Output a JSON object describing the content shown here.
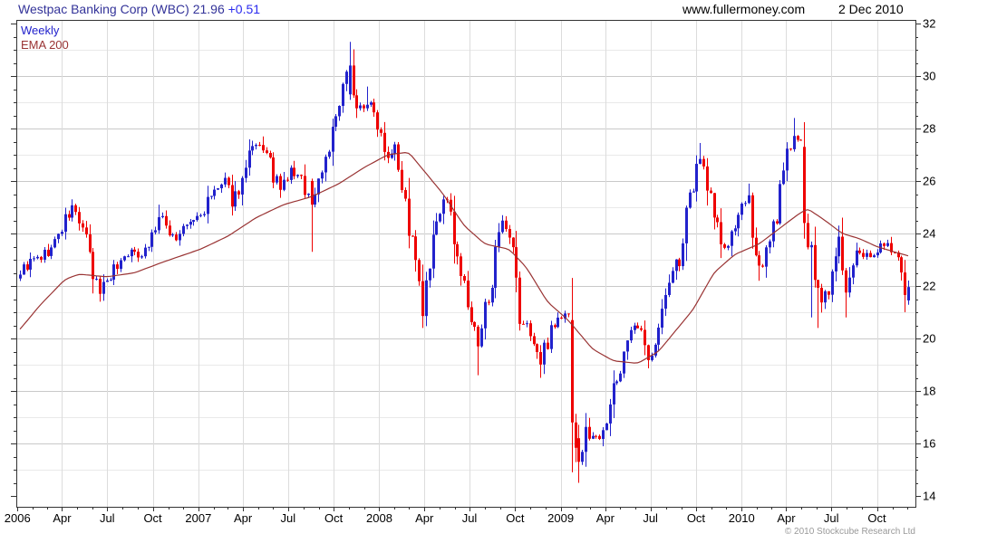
{
  "header": {
    "title": "Westpac Banking Corp (WBC) 21.96",
    "change": "+0.51",
    "site": "www.fullermoney.com",
    "date": "2 Dec 2010"
  },
  "legend": {
    "series": "Weekly",
    "ema": "EMA 200"
  },
  "footer": {
    "copyright": "© 2010 Stockcube Research Ltd"
  },
  "chart_data": {
    "type": "candlestick",
    "title": "Westpac Banking Corp (WBC) weekly candlestick chart with 200 EMA",
    "instrument": "Westpac Banking Corp",
    "ticker": "WBC",
    "last_price": 21.96,
    "change": 0.51,
    "timeframe": "Weekly",
    "overlay": "EMA 200",
    "start_week": "2006-01-06",
    "end_week": "2010-12-03",
    "y_axis": {
      "min": 14,
      "max": 32,
      "label_step": 2,
      "grid_step": 1,
      "tick_step": 0.5,
      "tick_labels": [
        "14",
        "16",
        "18",
        "20",
        "22",
        "24",
        "26",
        "28",
        "30",
        "32"
      ]
    },
    "x_axis": {
      "labels": [
        {
          "d": "2006-01-01",
          "t": "2006"
        },
        {
          "d": "2006-04-01",
          "t": "Apr"
        },
        {
          "d": "2006-07-01",
          "t": "Jul"
        },
        {
          "d": "2006-10-01",
          "t": "Oct"
        },
        {
          "d": "2007-01-01",
          "t": "2007"
        },
        {
          "d": "2007-04-01",
          "t": "Apr"
        },
        {
          "d": "2007-07-01",
          "t": "Jul"
        },
        {
          "d": "2007-10-01",
          "t": "Oct"
        },
        {
          "d": "2008-01-01",
          "t": "2008"
        },
        {
          "d": "2008-04-01",
          "t": "Apr"
        },
        {
          "d": "2008-07-01",
          "t": "Jul"
        },
        {
          "d": "2008-10-01",
          "t": "Oct"
        },
        {
          "d": "2009-01-01",
          "t": "2009"
        },
        {
          "d": "2009-04-01",
          "t": "Apr"
        },
        {
          "d": "2009-07-01",
          "t": "Jul"
        },
        {
          "d": "2009-10-01",
          "t": "Oct"
        },
        {
          "d": "2010-01-01",
          "t": "2010"
        },
        {
          "d": "2010-04-01",
          "t": "Apr"
        },
        {
          "d": "2010-07-01",
          "t": "Jul"
        },
        {
          "d": "2010-10-01",
          "t": "Oct"
        }
      ]
    },
    "colors": {
      "up": "#2222cc",
      "down": "#ee0000",
      "ema": "#993333",
      "grid_major": "#c9c9c9",
      "grid_minor": "#e9e9e9",
      "grid_vertical": "#dcdcdc",
      "axis": "#333333",
      "text": "#000000",
      "title_blue": "#333399",
      "change_blue": "#2b2bee",
      "copyright_gray": "#999999"
    },
    "price_anchors": [
      {
        "d": "2006-01-06",
        "c": 22.55
      },
      {
        "d": "2006-01-27",
        "c": 22.9
      },
      {
        "d": "2006-02-17",
        "c": 23.1
      },
      {
        "d": "2006-03-10",
        "c": 23.4
      },
      {
        "d": "2006-03-31",
        "c": 24.2
      },
      {
        "d": "2006-04-21",
        "c": 25.0
      },
      {
        "d": "2006-05-12",
        "c": 24.2
      },
      {
        "d": "2006-06-02",
        "c": 22.3
      },
      {
        "d": "2006-06-16",
        "c": 21.8
      },
      {
        "d": "2006-06-30",
        "c": 22.3
      },
      {
        "d": "2006-07-21",
        "c": 22.8
      },
      {
        "d": "2006-08-11",
        "c": 23.3
      },
      {
        "d": "2006-09-01",
        "c": 23.2
      },
      {
        "d": "2006-09-22",
        "c": 23.6
      },
      {
        "d": "2006-10-13",
        "c": 24.6
      },
      {
        "d": "2006-11-03",
        "c": 24.1
      },
      {
        "d": "2006-11-17",
        "c": 23.8
      },
      {
        "d": "2006-12-08",
        "c": 24.3
      },
      {
        "d": "2007-01-05",
        "c": 24.7
      },
      {
        "d": "2007-02-02",
        "c": 25.6
      },
      {
        "d": "2007-02-23",
        "c": 25.9
      },
      {
        "d": "2007-03-09",
        "c": 25.2
      },
      {
        "d": "2007-03-30",
        "c": 26.0
      },
      {
        "d": "2007-04-20",
        "c": 27.2
      },
      {
        "d": "2007-05-11",
        "c": 27.3
      },
      {
        "d": "2007-06-01",
        "c": 26.2
      },
      {
        "d": "2007-06-15",
        "c": 25.6
      },
      {
        "d": "2007-07-06",
        "c": 26.4
      },
      {
        "d": "2007-07-27",
        "c": 26.0
      },
      {
        "d": "2007-08-17",
        "c": 25.2
      },
      {
        "d": "2007-09-07",
        "c": 26.5
      },
      {
        "d": "2007-09-28",
        "c": 27.8
      },
      {
        "d": "2007-10-19",
        "c": 29.3
      },
      {
        "d": "2007-11-02",
        "c": 30.4
      },
      {
        "d": "2007-11-16",
        "c": 28.7
      },
      {
        "d": "2007-12-07",
        "c": 29.0
      },
      {
        "d": "2007-12-28",
        "c": 28.3
      },
      {
        "d": "2008-01-18",
        "c": 27.0
      },
      {
        "d": "2008-02-01",
        "c": 27.6
      },
      {
        "d": "2008-02-22",
        "c": 25.0
      },
      {
        "d": "2008-03-14",
        "c": 22.8
      },
      {
        "d": "2008-03-28",
        "c": 20.9
      },
      {
        "d": "2008-04-18",
        "c": 23.5
      },
      {
        "d": "2008-05-09",
        "c": 25.4
      },
      {
        "d": "2008-05-30",
        "c": 24.0
      },
      {
        "d": "2008-06-20",
        "c": 21.8
      },
      {
        "d": "2008-07-18",
        "c": 19.6
      },
      {
        "d": "2008-08-08",
        "c": 21.8
      },
      {
        "d": "2008-09-05",
        "c": 24.3
      },
      {
        "d": "2008-09-26",
        "c": 23.2
      },
      {
        "d": "2008-10-10",
        "c": 20.7
      },
      {
        "d": "2008-10-31",
        "c": 20.3
      },
      {
        "d": "2008-11-21",
        "c": 19.0
      },
      {
        "d": "2008-12-12",
        "c": 20.5
      },
      {
        "d": "2009-01-09",
        "c": 20.9
      },
      {
        "d": "2009-01-16",
        "c": 20.8
      },
      {
        "d": "2009-01-23",
        "c": 16.8
      },
      {
        "d": "2009-02-06",
        "c": 15.3
      },
      {
        "d": "2009-02-20",
        "c": 16.4
      },
      {
        "d": "2009-03-13",
        "c": 16.2
      },
      {
        "d": "2009-04-03",
        "c": 17.0
      },
      {
        "d": "2009-04-24",
        "c": 18.4
      },
      {
        "d": "2009-05-15",
        "c": 20.1
      },
      {
        "d": "2009-06-05",
        "c": 20.4
      },
      {
        "d": "2009-06-26",
        "c": 19.3
      },
      {
        "d": "2009-07-17",
        "c": 20.3
      },
      {
        "d": "2009-08-07",
        "c": 22.2
      },
      {
        "d": "2009-08-28",
        "c": 23.1
      },
      {
        "d": "2009-09-18",
        "c": 25.2
      },
      {
        "d": "2009-10-09",
        "c": 27.0
      },
      {
        "d": "2009-10-30",
        "c": 25.4
      },
      {
        "d": "2009-11-20",
        "c": 23.6
      },
      {
        "d": "2009-12-04",
        "c": 23.3
      },
      {
        "d": "2009-12-24",
        "c": 24.9
      },
      {
        "d": "2010-01-15",
        "c": 25.1
      },
      {
        "d": "2010-02-05",
        "c": 22.7
      },
      {
        "d": "2010-02-26",
        "c": 23.5
      },
      {
        "d": "2010-03-19",
        "c": 25.5
      },
      {
        "d": "2010-04-09",
        "c": 27.5
      },
      {
        "d": "2010-04-16",
        "c": 27.9
      },
      {
        "d": "2010-04-30",
        "c": 27.4
      },
      {
        "d": "2010-05-07",
        "c": 24.4
      },
      {
        "d": "2010-05-28",
        "c": 22.4
      },
      {
        "d": "2010-06-11",
        "c": 21.3
      },
      {
        "d": "2010-07-02",
        "c": 22.3
      },
      {
        "d": "2010-07-16",
        "c": 23.9
      },
      {
        "d": "2010-07-30",
        "c": 21.6
      },
      {
        "d": "2010-08-20",
        "c": 23.1
      },
      {
        "d": "2010-09-10",
        "c": 23.3
      },
      {
        "d": "2010-10-01",
        "c": 23.2
      },
      {
        "d": "2010-10-15",
        "c": 23.7
      },
      {
        "d": "2010-11-05",
        "c": 23.2
      },
      {
        "d": "2010-11-26",
        "c": 21.5
      },
      {
        "d": "2010-12-03",
        "c": 21.96
      }
    ],
    "ema_anchors": [
      {
        "d": "2006-01-06",
        "v": 20.35
      },
      {
        "d": "2006-02-17",
        "v": 21.3
      },
      {
        "d": "2006-04-07",
        "v": 22.25
      },
      {
        "d": "2006-05-05",
        "v": 22.45
      },
      {
        "d": "2006-06-30",
        "v": 22.35
      },
      {
        "d": "2006-08-25",
        "v": 22.5
      },
      {
        "d": "2006-10-20",
        "v": 22.9
      },
      {
        "d": "2007-01-05",
        "v": 23.4
      },
      {
        "d": "2007-03-02",
        "v": 23.9
      },
      {
        "d": "2007-04-27",
        "v": 24.6
      },
      {
        "d": "2007-06-22",
        "v": 25.1
      },
      {
        "d": "2007-08-17",
        "v": 25.4
      },
      {
        "d": "2007-10-12",
        "v": 25.9
      },
      {
        "d": "2007-11-30",
        "v": 26.5
      },
      {
        "d": "2008-01-18",
        "v": 27.0
      },
      {
        "d": "2008-02-29",
        "v": 27.1
      },
      {
        "d": "2008-04-04",
        "v": 26.3
      },
      {
        "d": "2008-05-09",
        "v": 25.5
      },
      {
        "d": "2008-06-20",
        "v": 24.3
      },
      {
        "d": "2008-08-01",
        "v": 23.6
      },
      {
        "d": "2008-09-19",
        "v": 23.4
      },
      {
        "d": "2008-10-24",
        "v": 22.7
      },
      {
        "d": "2008-12-05",
        "v": 21.4
      },
      {
        "d": "2009-01-16",
        "v": 20.7
      },
      {
        "d": "2009-03-06",
        "v": 19.6
      },
      {
        "d": "2009-04-17",
        "v": 19.15
      },
      {
        "d": "2009-06-05",
        "v": 19.05
      },
      {
        "d": "2009-07-17",
        "v": 19.5
      },
      {
        "d": "2009-08-21",
        "v": 20.3
      },
      {
        "d": "2009-09-25",
        "v": 21.1
      },
      {
        "d": "2009-11-06",
        "v": 22.5
      },
      {
        "d": "2009-12-18",
        "v": 23.2
      },
      {
        "d": "2010-02-05",
        "v": 23.6
      },
      {
        "d": "2010-03-19",
        "v": 24.2
      },
      {
        "d": "2010-04-23",
        "v": 24.7
      },
      {
        "d": "2010-05-14",
        "v": 24.95
      },
      {
        "d": "2010-06-18",
        "v": 24.5
      },
      {
        "d": "2010-07-23",
        "v": 24.0
      },
      {
        "d": "2010-08-27",
        "v": 23.8
      },
      {
        "d": "2010-10-01",
        "v": 23.5
      },
      {
        "d": "2010-11-05",
        "v": 23.3
      },
      {
        "d": "2010-12-03",
        "v": 23.15
      }
    ],
    "overrides": [
      {
        "d": "2006-04-21",
        "h": 25.3
      },
      {
        "d": "2006-06-16",
        "l": 21.4
      },
      {
        "d": "2006-10-13",
        "h": 25.1
      },
      {
        "d": "2007-05-11",
        "h": 27.7
      },
      {
        "d": "2007-08-17",
        "o": 26.0,
        "c": 25.1,
        "l": 23.3
      },
      {
        "d": "2007-11-02",
        "o": 29.3,
        "c": 30.4,
        "h": 31.3
      },
      {
        "d": "2007-12-07",
        "h": 29.6
      },
      {
        "d": "2008-03-28",
        "l": 20.4
      },
      {
        "d": "2008-07-18",
        "l": 18.6
      },
      {
        "d": "2008-09-05",
        "h": 24.7
      },
      {
        "d": "2008-11-21",
        "l": 18.5
      },
      {
        "d": "2009-01-23",
        "o": 20.7,
        "c": 16.8,
        "l": 14.9
      },
      {
        "d": "2009-02-06",
        "o": 16.2,
        "c": 15.3,
        "l": 14.5
      },
      {
        "d": "2009-10-09",
        "h": 27.45
      },
      {
        "d": "2010-01-15",
        "h": 25.9
      },
      {
        "d": "2010-02-05",
        "l": 22.2
      },
      {
        "d": "2010-04-16",
        "h": 28.4
      },
      {
        "d": "2010-05-07",
        "o": 27.3,
        "c": 24.4,
        "l": 23.8
      },
      {
        "d": "2010-05-21",
        "l": 20.8
      },
      {
        "d": "2010-06-04",
        "l": 20.4
      },
      {
        "d": "2010-07-16",
        "h": 24.3
      },
      {
        "d": "2010-07-30",
        "l": 20.8
      },
      {
        "d": "2010-11-26",
        "l": 21.0
      },
      {
        "d": "2010-12-03",
        "o": 21.45,
        "c": 21.96
      }
    ],
    "noise_seed": 9
  }
}
